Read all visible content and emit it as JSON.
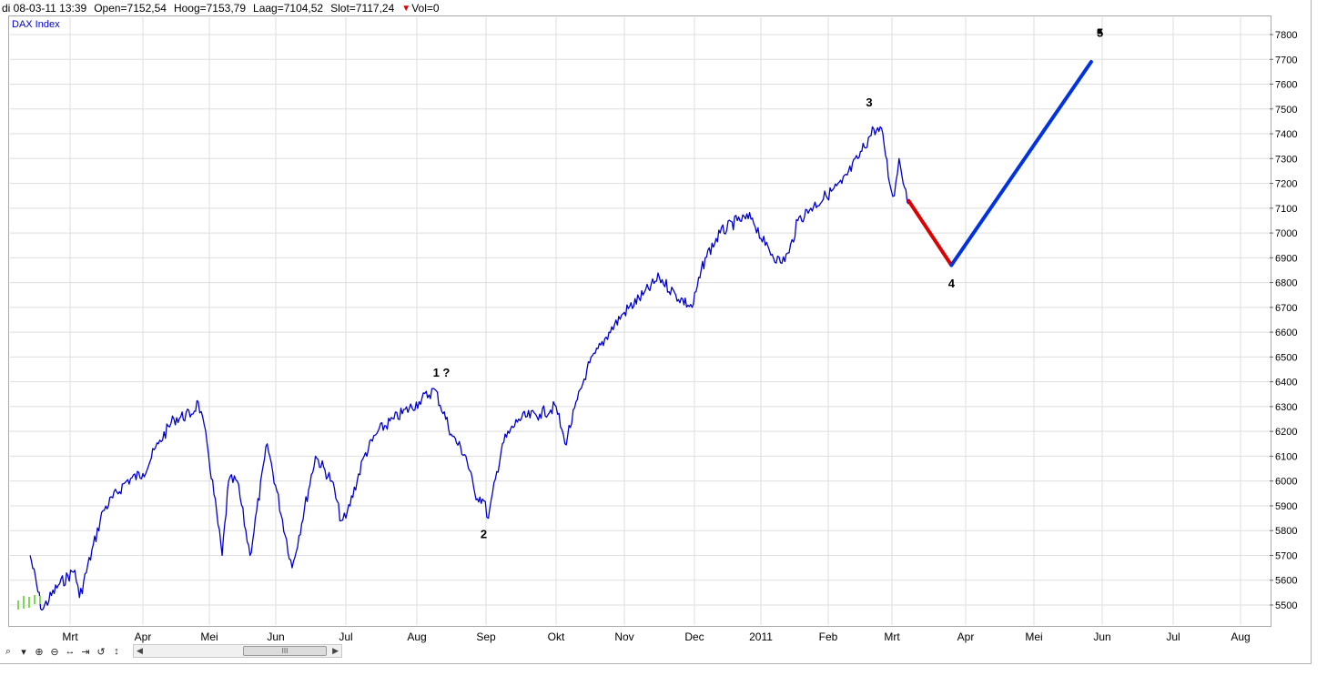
{
  "header": {
    "datetime": "di 08-03-11 13:39",
    "open": "Open=7152,54",
    "high": "Hoog=7153,79",
    "low": "Laag=7104,52",
    "close": "Slot=7117,24",
    "volume": "Vol=0"
  },
  "toolbar": {
    "icons": [
      "zoom-icon",
      "dropdown-icon",
      "zoom-in-icon",
      "zoom-out-icon",
      "fit-horizontal-icon",
      "go-end-icon",
      "reset-icon",
      "fit-vertical-icon"
    ],
    "scroll_grip": "III"
  },
  "chart_data": {
    "type": "line",
    "series_label": "DAX Index",
    "x_tick_labels": [
      "Mrt",
      "Apr",
      "Mei",
      "Jun",
      "Jul",
      "Aug",
      "Sep",
      "Okt",
      "Nov",
      "Dec",
      "2011",
      "Feb",
      "Mrt",
      "Apr",
      "Mei",
      "Jun",
      "Jul",
      "Aug"
    ],
    "y_ticks": [
      5500,
      5600,
      5700,
      5800,
      5900,
      6000,
      6100,
      6200,
      6300,
      6400,
      6500,
      6600,
      6700,
      6800,
      6900,
      7000,
      7100,
      7200,
      7300,
      7400,
      7500,
      7600,
      7700,
      7800
    ],
    "ylim": [
      5420,
      7860
    ],
    "grid": true,
    "series": [
      {
        "name": "DAX Index",
        "color": "#0000cc",
        "points": [
          [
            "2010-02-12",
            5700
          ],
          [
            "2010-02-17",
            5480
          ],
          [
            "2010-02-24",
            5580
          ],
          [
            "2010-03-03",
            5640
          ],
          [
            "2010-03-05",
            5530
          ],
          [
            "2010-03-15",
            5880
          ],
          [
            "2010-03-25",
            6000
          ],
          [
            "2010-04-01",
            6030
          ],
          [
            "2010-04-08",
            6150
          ],
          [
            "2010-04-15",
            6250
          ],
          [
            "2010-04-23",
            6270
          ],
          [
            "2010-04-26",
            6320
          ],
          [
            "2010-04-30",
            6150
          ],
          [
            "2010-05-07",
            5700
          ],
          [
            "2010-05-10",
            6000
          ],
          [
            "2010-05-14",
            6000
          ],
          [
            "2010-05-20",
            5700
          ],
          [
            "2010-05-28",
            6150
          ],
          [
            "2010-06-08",
            5650
          ],
          [
            "2010-06-18",
            6100
          ],
          [
            "2010-06-25",
            6000
          ],
          [
            "2010-06-29",
            5840
          ],
          [
            "2010-07-01",
            5850
          ],
          [
            "2010-07-09",
            6100
          ],
          [
            "2010-07-15",
            6200
          ],
          [
            "2010-07-22",
            6250
          ],
          [
            "2010-08-02",
            6320
          ],
          [
            "2010-08-09",
            6370
          ],
          [
            "2010-08-17",
            6180
          ],
          [
            "2010-08-23",
            6100
          ],
          [
            "2010-08-27",
            5950
          ],
          [
            "2010-08-31",
            5920
          ],
          [
            "2010-09-02",
            5850
          ],
          [
            "2010-09-08",
            6150
          ],
          [
            "2010-09-15",
            6250
          ],
          [
            "2010-09-24",
            6270
          ],
          [
            "2010-10-01",
            6300
          ],
          [
            "2010-10-05",
            6150
          ],
          [
            "2010-10-15",
            6450
          ],
          [
            "2010-10-25",
            6600
          ],
          [
            "2010-11-01",
            6680
          ],
          [
            "2010-11-09",
            6750
          ],
          [
            "2010-11-16",
            6820
          ],
          [
            "2010-11-23",
            6750
          ],
          [
            "2010-11-30",
            6700
          ],
          [
            "2010-12-06",
            6900
          ],
          [
            "2010-12-13",
            7000
          ],
          [
            "2010-12-21",
            7050
          ],
          [
            "2010-12-28",
            7060
          ],
          [
            "2011-01-03",
            6950
          ],
          [
            "2011-01-10",
            6880
          ],
          [
            "2011-01-14",
            6920
          ],
          [
            "2011-01-18",
            7050
          ],
          [
            "2011-01-24",
            7100
          ],
          [
            "2011-01-31",
            7150
          ],
          [
            "2011-02-07",
            7200
          ],
          [
            "2011-02-14",
            7300
          ],
          [
            "2011-02-21",
            7420
          ],
          [
            "2011-02-25",
            7400
          ],
          [
            "2011-02-28",
            7200
          ],
          [
            "2011-03-02",
            7150
          ],
          [
            "2011-03-04",
            7300
          ],
          [
            "2011-03-08",
            7117
          ]
        ]
      },
      {
        "name": "projection-down",
        "color": "#dd0000",
        "points": [
          [
            "2011-03-08",
            7130
          ],
          [
            "2011-03-26",
            6870
          ]
        ]
      },
      {
        "name": "projection-up",
        "color": "#0033dd",
        "points": [
          [
            "2011-03-26",
            6870
          ],
          [
            "2011-05-27",
            7690
          ]
        ]
      }
    ],
    "annotations": [
      {
        "text": "1 ?",
        "x": "2010-08-12",
        "y": 6420
      },
      {
        "text": "2",
        "x": "2010-08-31",
        "y": 5770
      },
      {
        "text": "3",
        "x": "2011-02-19",
        "y": 7510
      },
      {
        "text": "4",
        "x": "2011-03-26",
        "y": 6780
      },
      {
        "text": "5",
        "x": "2011-05-31",
        "y": 7790
      }
    ]
  }
}
